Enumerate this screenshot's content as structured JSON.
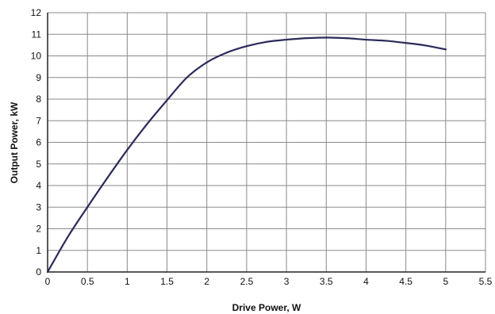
{
  "chart_data": {
    "type": "line",
    "xlabel": "Drive Power, W",
    "ylabel": "Output Power, kW",
    "xlim": [
      0,
      5.5
    ],
    "ylim": [
      0,
      12
    ],
    "x_ticks": [
      "0",
      "0.5",
      "1",
      "1.5",
      "2",
      "2.5",
      "3",
      "3.5",
      "4",
      "4.5",
      "5",
      "5.5"
    ],
    "y_ticks": [
      "0",
      "1",
      "2",
      "3",
      "4",
      "5",
      "6",
      "7",
      "8",
      "9",
      "10",
      "11",
      "12"
    ],
    "grid": true,
    "legend": "none",
    "series": [
      {
        "x": [
          0,
          0.25,
          0.5,
          0.75,
          1,
          1.25,
          1.5,
          1.75,
          2,
          2.25,
          2.5,
          2.75,
          3,
          3.25,
          3.5,
          3.75,
          4,
          4.25,
          4.5,
          4.75,
          5
        ],
        "values": [
          0,
          1.6,
          3.0,
          4.35,
          5.65,
          6.85,
          7.95,
          9.0,
          9.7,
          10.15,
          10.45,
          10.65,
          10.75,
          10.82,
          10.85,
          10.82,
          10.75,
          10.7,
          10.6,
          10.48,
          10.3
        ],
        "color": "#2a2a5a"
      }
    ],
    "colors": {
      "grid": "#8a8a8a",
      "axis": "#222222",
      "line": "#2a2a5a"
    }
  }
}
